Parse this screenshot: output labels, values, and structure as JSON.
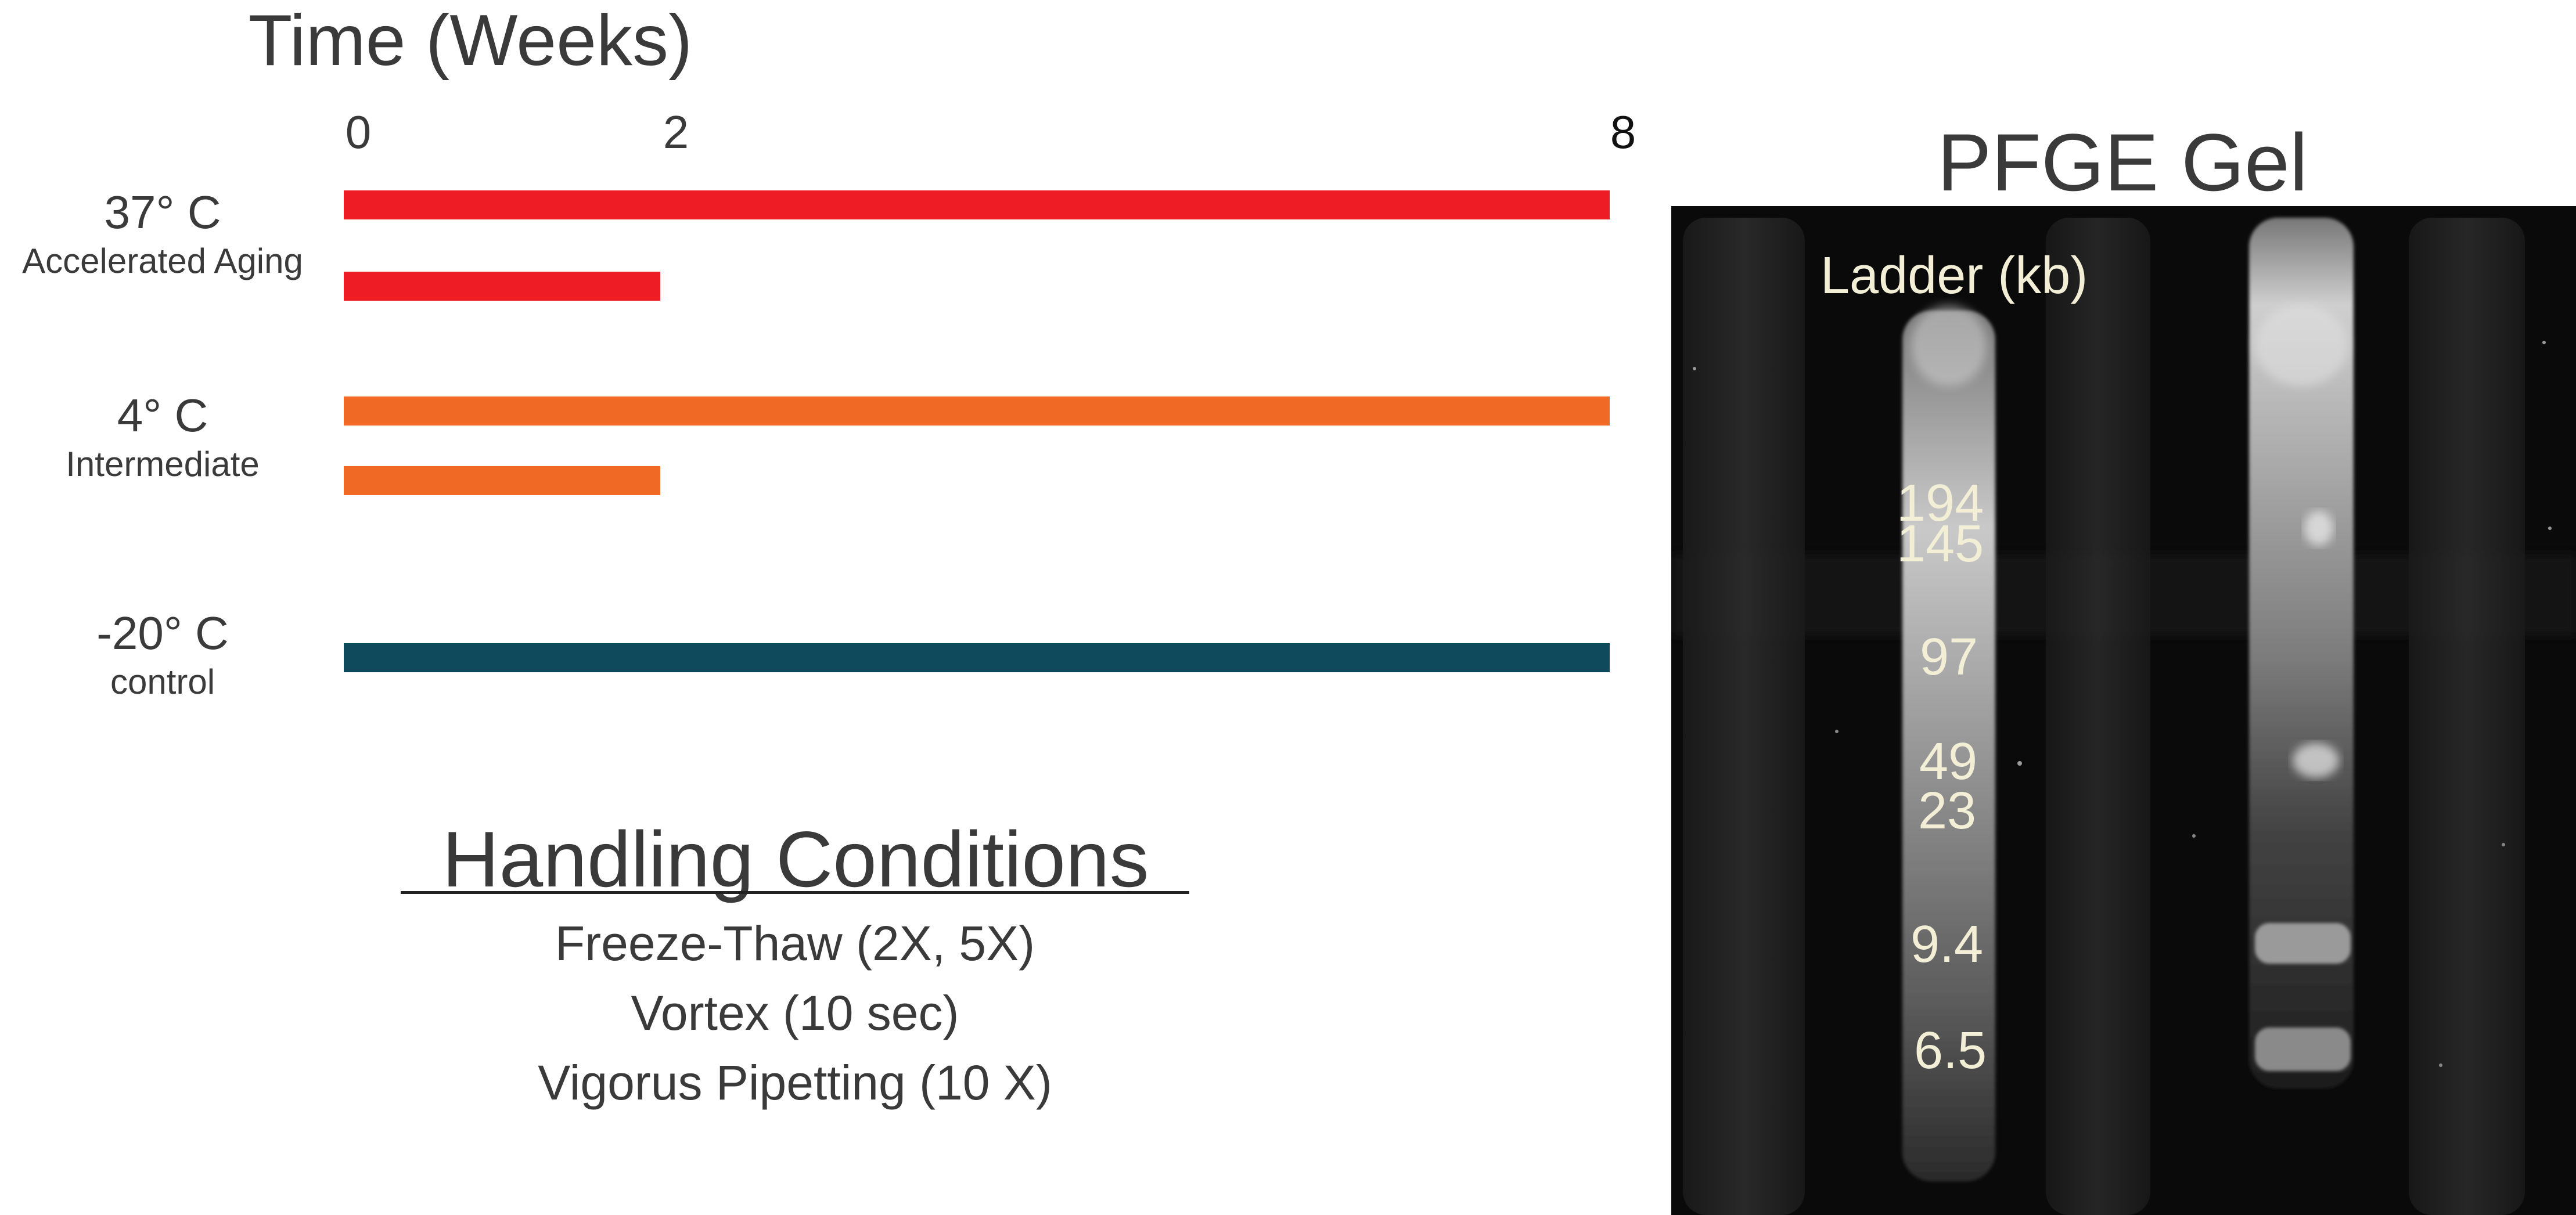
{
  "header": {
    "title": "Time (Weeks)"
  },
  "timeline": {
    "ticks": [
      "0",
      "2",
      "8"
    ],
    "conditions": [
      {
        "temp": "37° C",
        "subtitle": "Accelerated Aging",
        "color": "#ee1c25",
        "bar_weeks": [
          8,
          2
        ]
      },
      {
        "temp": "4° C",
        "subtitle": "Intermediate",
        "color": "#f06a25",
        "bar_weeks": [
          8,
          2
        ]
      },
      {
        "temp": "-20° C",
        "subtitle": "control",
        "color": "#0f4a5c",
        "bar_weeks": [
          8
        ]
      }
    ]
  },
  "handling": {
    "title": "Handling Conditions",
    "items": [
      "Freeze-Thaw (2X, 5X)",
      "Vortex (10 sec)",
      "Vigorus Pipetting (10 X)"
    ]
  },
  "gel": {
    "title": "PFGE Gel",
    "ladder_title": "Ladder (kb)",
    "ladder": [
      "194",
      "145",
      "97",
      "49",
      "23",
      "9.4",
      "6.5"
    ]
  }
}
